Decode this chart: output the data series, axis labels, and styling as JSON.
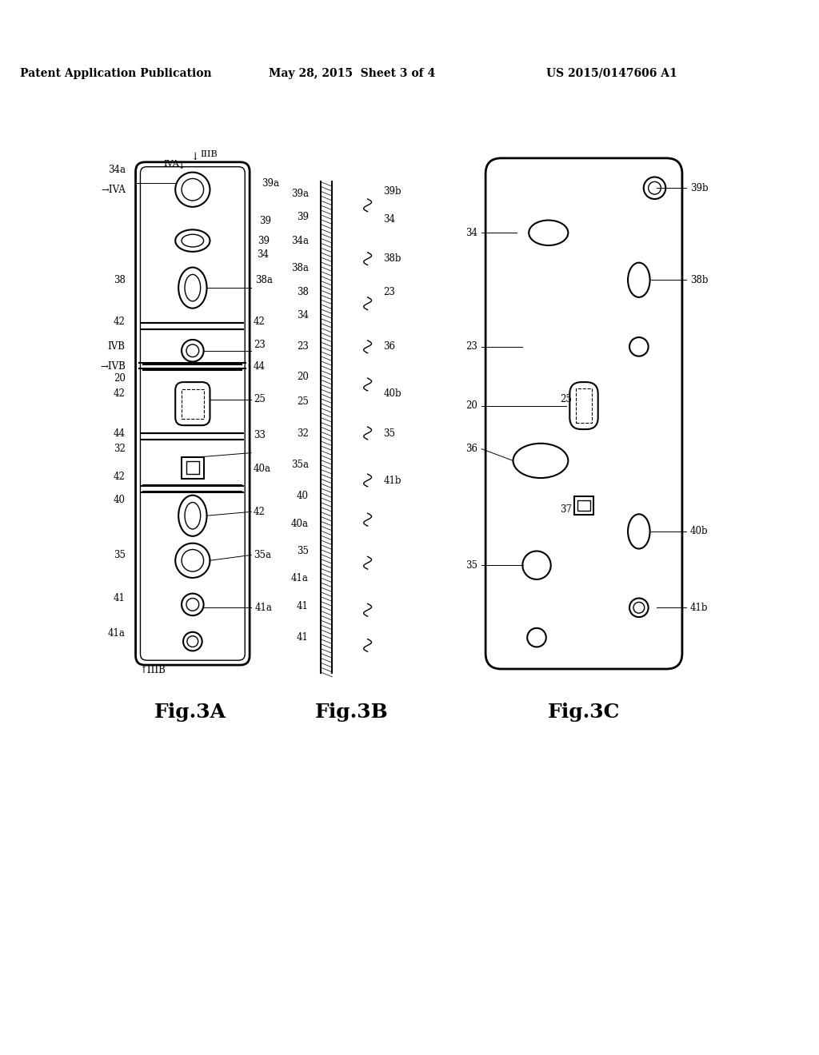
{
  "header_left": "Patent Application Publication",
  "header_center": "May 28, 2015  Sheet 3 of 4",
  "header_right": "US 2015/0147606 A1",
  "fig_labels": [
    "Fig.3A",
    "Fig.3B",
    "Fig.3C"
  ],
  "background": "#ffffff",
  "line_color": "#000000"
}
